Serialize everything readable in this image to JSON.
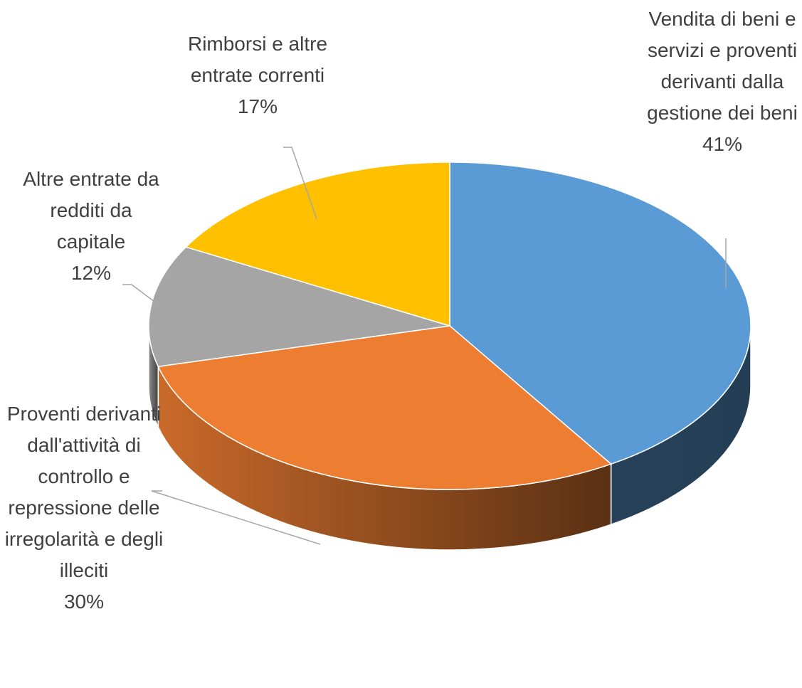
{
  "chart_data": {
    "type": "pie3d",
    "categories": [
      "Vendita di beni e servizi e proventi derivanti dalla gestione dei beni",
      "Proventi derivanti dall'attività di controllo e repressione delle irregolarità e degli illeciti",
      "Altre entrate da redditi da capitale",
      "Rimborsi e altre entrate correnti"
    ],
    "values": [
      41,
      30,
      12,
      17
    ],
    "value_labels": [
      "41%",
      "30%",
      "12%",
      "17%"
    ],
    "colors": [
      "#5b9bd5",
      "#ed7d31",
      "#a5a5a5",
      "#ffc000"
    ]
  }
}
